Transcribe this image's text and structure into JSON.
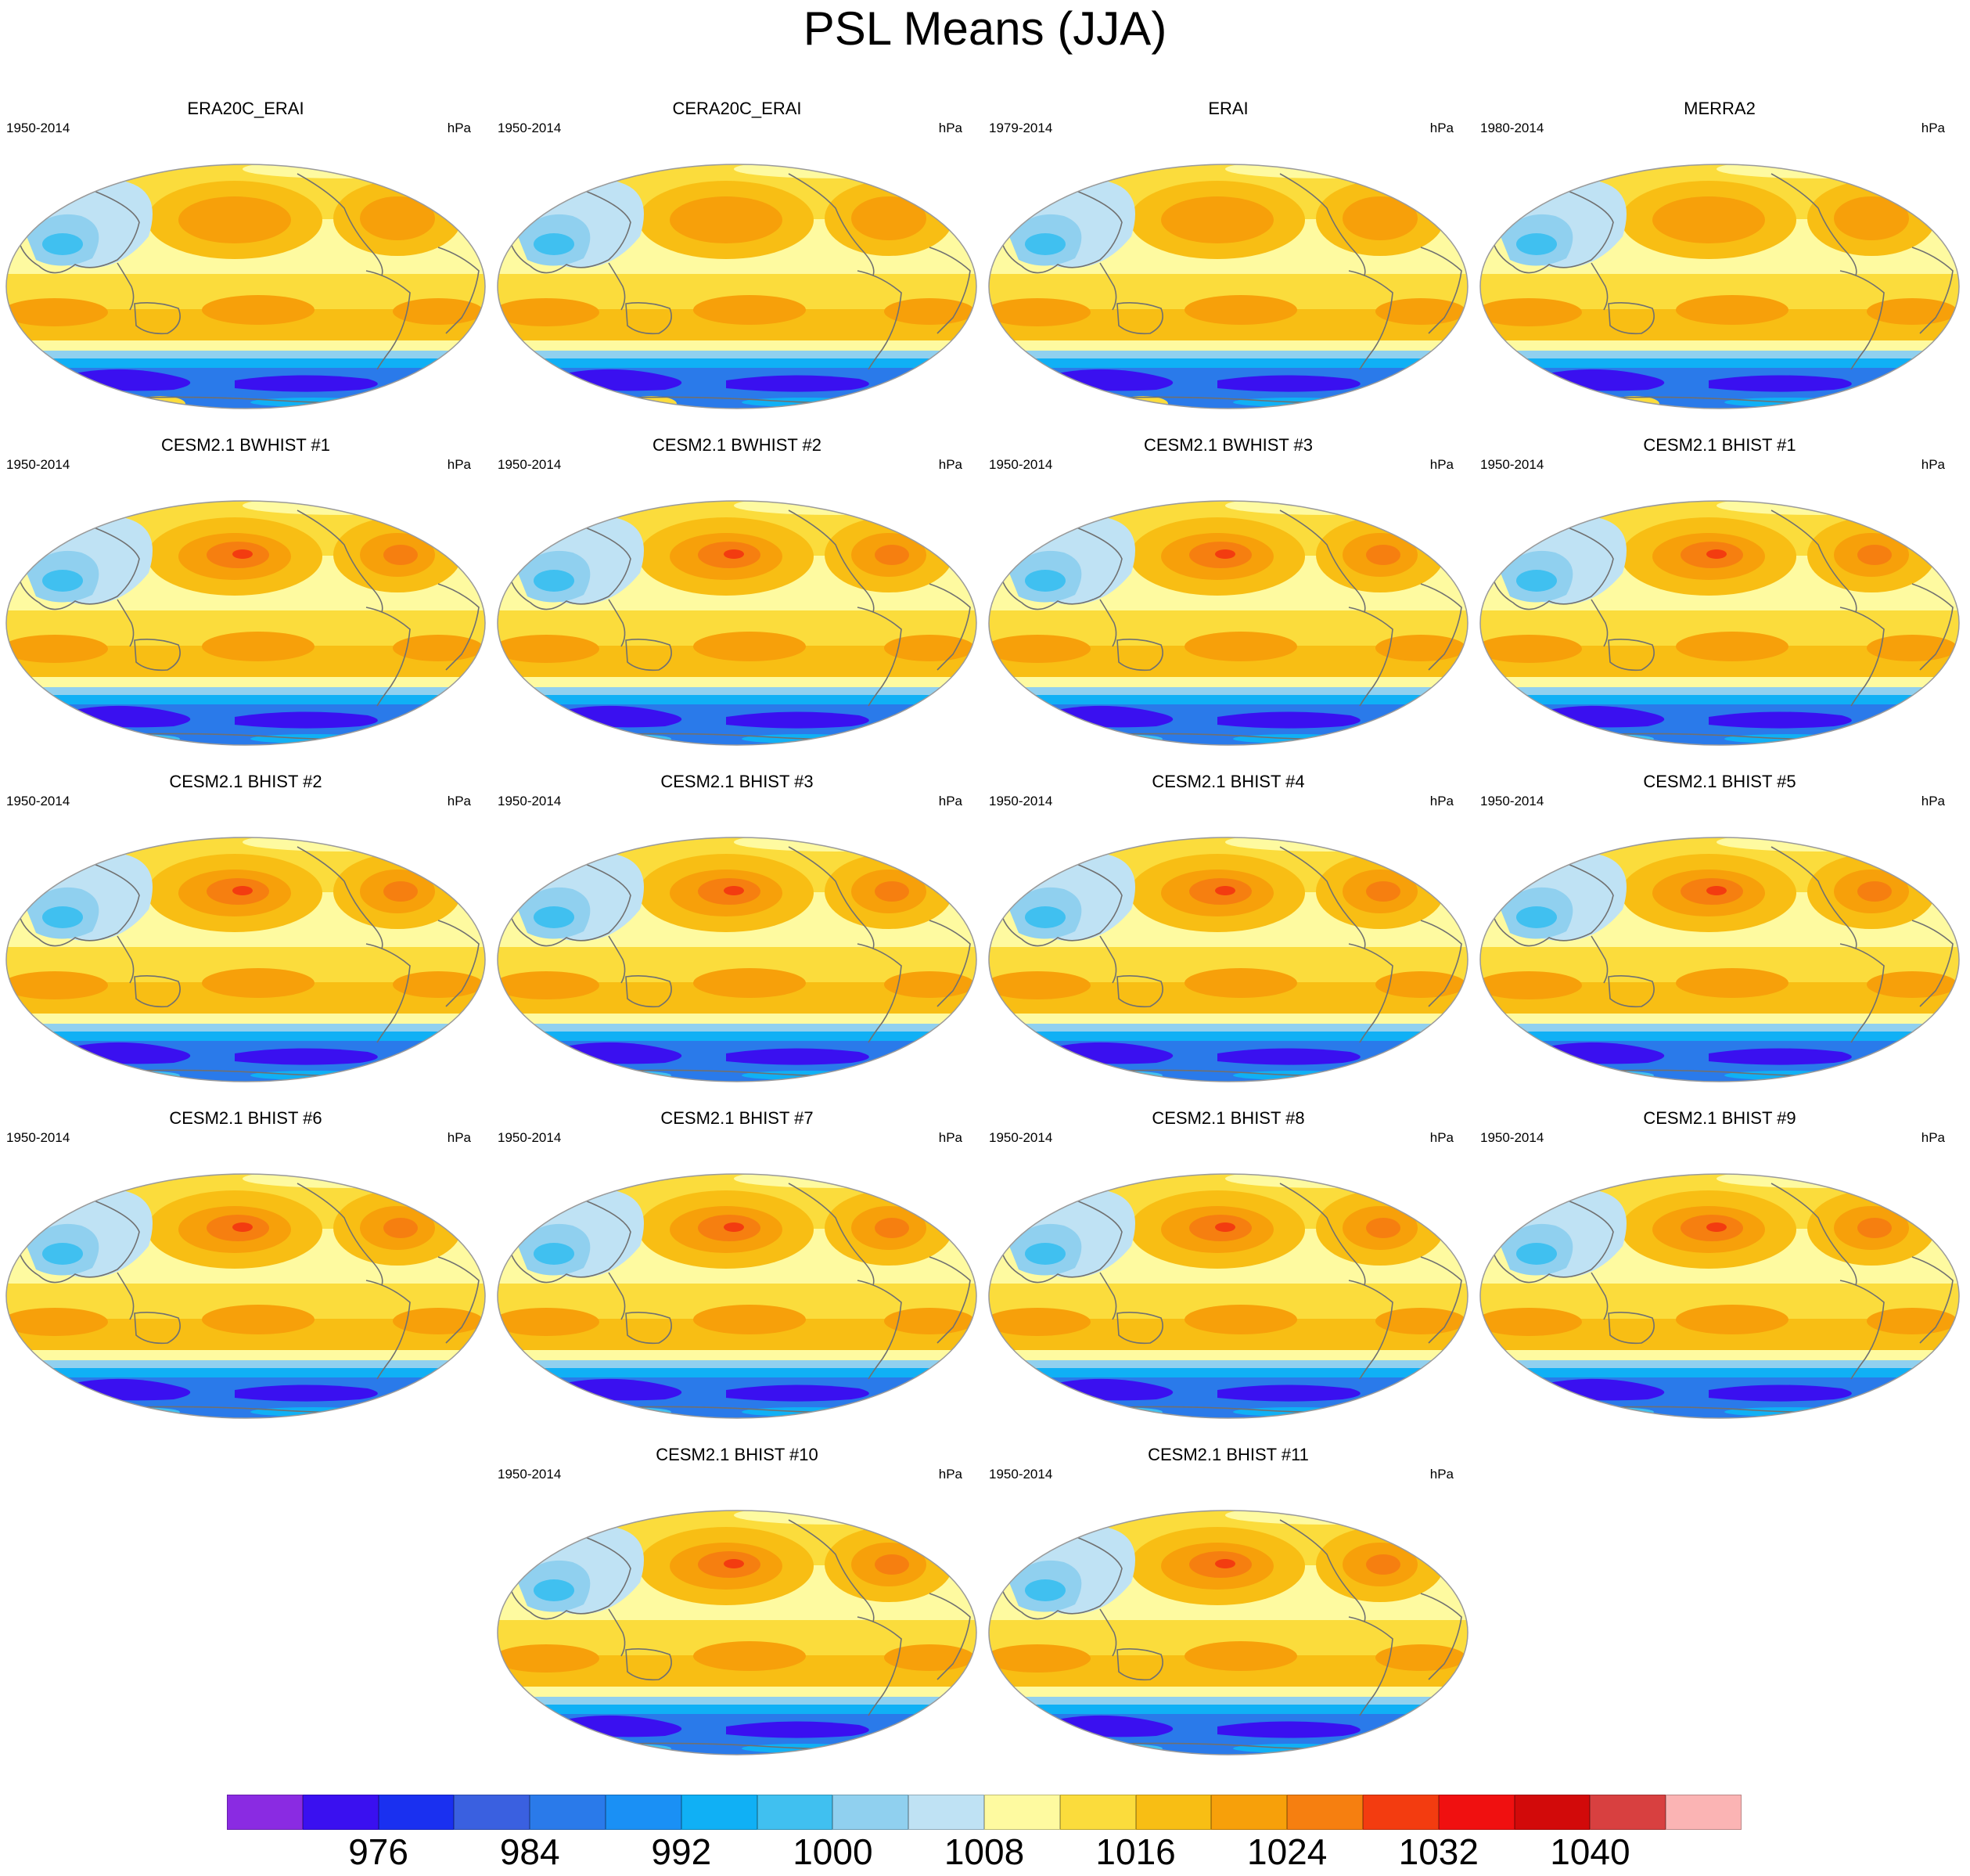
{
  "title": "PSL Means (JJA)",
  "units": "hPa",
  "panels": [
    {
      "title": "ERA20C_ERAI",
      "years": "1950-2014",
      "variant": "obs"
    },
    {
      "title": "CERA20C_ERAI",
      "years": "1950-2014",
      "variant": "obs"
    },
    {
      "title": "ERAI",
      "years": "1979-2014",
      "variant": "obs"
    },
    {
      "title": "MERRA2",
      "years": "1980-2014",
      "variant": "obs"
    },
    {
      "title": "CESM2.1 BWHIST #1",
      "years": "1950-2014",
      "variant": "model"
    },
    {
      "title": "CESM2.1 BWHIST #2",
      "years": "1950-2014",
      "variant": "model"
    },
    {
      "title": "CESM2.1 BWHIST #3",
      "years": "1950-2014",
      "variant": "model"
    },
    {
      "title": "CESM2.1 BHIST #1",
      "years": "1950-2014",
      "variant": "model"
    },
    {
      "title": "CESM2.1 BHIST #2",
      "years": "1950-2014",
      "variant": "model"
    },
    {
      "title": "CESM2.1 BHIST #3",
      "years": "1950-2014",
      "variant": "model"
    },
    {
      "title": "CESM2.1 BHIST #4",
      "years": "1950-2014",
      "variant": "model"
    },
    {
      "title": "CESM2.1 BHIST #5",
      "years": "1950-2014",
      "variant": "model"
    },
    {
      "title": "CESM2.1 BHIST #6",
      "years": "1950-2014",
      "variant": "model"
    },
    {
      "title": "CESM2.1 BHIST #7",
      "years": "1950-2014",
      "variant": "model"
    },
    {
      "title": "CESM2.1 BHIST #8",
      "years": "1950-2014",
      "variant": "model"
    },
    {
      "title": "CESM2.1 BHIST #9",
      "years": "1950-2014",
      "variant": "model"
    },
    {
      "title": "CESM2.1 BHIST #10",
      "years": "1950-2014",
      "variant": "model"
    },
    {
      "title": "CESM2.1 BHIST #11",
      "years": "1950-2014",
      "variant": "model"
    }
  ],
  "colorbar": {
    "colors": [
      "#8a2be2",
      "#3a10f0",
      "#1a30f0",
      "#3a60e0",
      "#2a7aea",
      "#1a90f5",
      "#10b0f5",
      "#40c0f0",
      "#90d0ef",
      "#bfe2f4",
      "#fefaa0",
      "#fbdc3c",
      "#f8be14",
      "#f7a00a",
      "#f67f10",
      "#f33c10",
      "#f01010",
      "#d20a0a",
      "#d84040",
      "#fbb4b4"
    ],
    "labels": [
      "976",
      "984",
      "992",
      "1000",
      "1008",
      "1016",
      "1024",
      "1032",
      "1040"
    ]
  }
}
